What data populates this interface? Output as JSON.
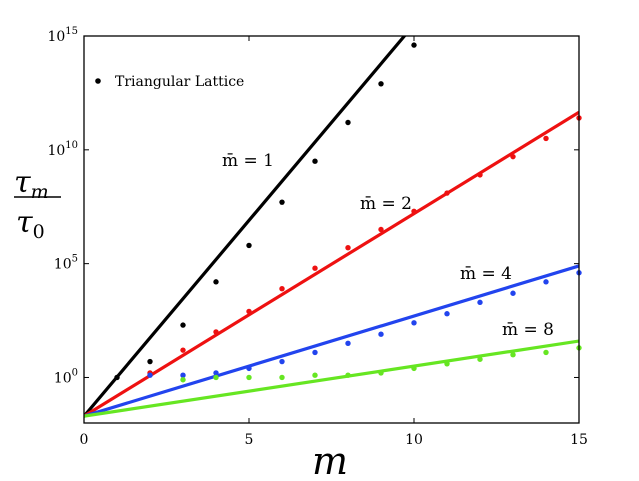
{
  "chart_data": {
    "type": "scatter",
    "title": "",
    "xlabel": "m",
    "ylabel": {
      "num": "τ",
      "num_sub": "m",
      "den": "τ",
      "den_sub": "0"
    },
    "xlim": [
      0,
      15
    ],
    "ylim_log10": [
      -2,
      15
    ],
    "y_scale": "log",
    "grid": false,
    "xticks": [
      "0",
      "5",
      "10",
      "15"
    ],
    "yticks": [
      {
        "base": "10",
        "exp": "0"
      },
      {
        "base": "10",
        "exp": "5"
      },
      {
        "base": "10",
        "exp": "10"
      },
      {
        "base": "10",
        "exp": "15"
      }
    ],
    "legend": {
      "label": "Triangular Lattice",
      "placement": "top-left",
      "color": "#000000"
    },
    "lines": [
      {
        "label": "m̄ = 1",
        "color": "#000000",
        "y0_log10": -1.7,
        "slope_log10": 1.72
      },
      {
        "label": "m̄ = 2",
        "color": "#ee1111",
        "y0_log10": -1.7,
        "slope_log10": 0.89
      },
      {
        "label": "m̄ = 4",
        "color": "#2244ee",
        "y0_log10": -1.7,
        "slope_log10": 0.44
      },
      {
        "label": "m̄ = 8",
        "color": "#66e622",
        "y0_log10": -1.7,
        "slope_log10": 0.22
      }
    ],
    "series": [
      {
        "color": "#000000",
        "x": [
          1,
          2,
          3,
          4,
          5,
          6,
          7,
          8,
          9,
          10
        ],
        "log10_y": [
          0.0,
          0.7,
          2.3,
          4.2,
          5.8,
          7.7,
          9.5,
          11.2,
          12.9,
          14.6
        ]
      },
      {
        "color": "#ee1111",
        "x": [
          2,
          3,
          4,
          5,
          6,
          7,
          8,
          9,
          10,
          11,
          12,
          13,
          14,
          15
        ],
        "log10_y": [
          0.2,
          1.2,
          2.0,
          2.9,
          3.9,
          4.8,
          5.7,
          6.5,
          7.3,
          8.1,
          8.9,
          9.7,
          10.5,
          11.4
        ]
      },
      {
        "color": "#2244ee",
        "x": [
          2,
          3,
          4,
          5,
          6,
          7,
          8,
          9,
          10,
          11,
          12,
          13,
          14,
          15
        ],
        "log10_y": [
          0.1,
          0.1,
          0.2,
          0.4,
          0.7,
          1.1,
          1.5,
          1.9,
          2.4,
          2.8,
          3.3,
          3.7,
          4.2,
          4.6
        ]
      },
      {
        "color": "#66e622",
        "x": [
          3,
          4,
          5,
          6,
          7,
          8,
          9,
          10,
          11,
          12,
          13,
          14,
          15
        ],
        "log10_y": [
          -0.1,
          0.0,
          0.0,
          0.0,
          0.1,
          0.1,
          0.2,
          0.4,
          0.6,
          0.8,
          1.0,
          1.1,
          1.3
        ]
      }
    ]
  }
}
